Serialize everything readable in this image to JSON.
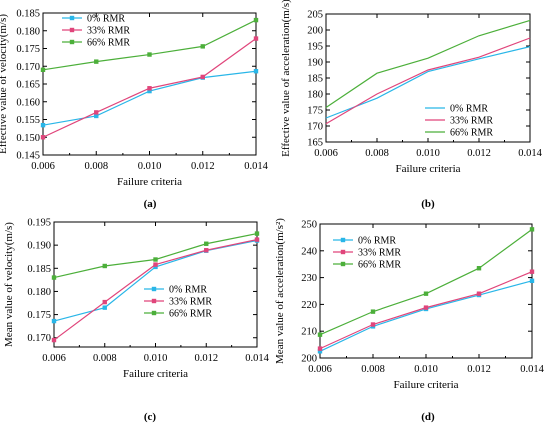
{
  "colors": {
    "s0": "#29b6e8",
    "s33": "#e0457b",
    "s66": "#4caf3a"
  },
  "chart_data": [
    {
      "type": "line",
      "panel_label": "(a)",
      "xlabel": "Failure criteria",
      "ylabel": "Effective value of velocity(m/s)",
      "x": [
        0.006,
        0.008,
        0.01,
        0.012,
        0.014
      ],
      "xticks": [
        "0.006",
        "0.008",
        "0.010",
        "0.012",
        "0.014"
      ],
      "xlim": [
        0.006,
        0.014
      ],
      "ylim": [
        0.145,
        0.185
      ],
      "yticks": [
        "0.145",
        "0.150",
        "0.155",
        "0.160",
        "0.165",
        "0.170",
        "0.175",
        "0.180",
        "0.185"
      ],
      "legend_position": "top-left",
      "series": [
        {
          "name": "0%   RMR",
          "values": [
            0.1534,
            0.156,
            0.163,
            0.1668,
            0.1686
          ]
        },
        {
          "name": "33% RMR",
          "values": [
            0.15,
            0.157,
            0.1638,
            0.167,
            0.1778
          ]
        },
        {
          "name": "66% RMR",
          "values": [
            0.169,
            0.1713,
            0.1733,
            0.1756,
            0.183
          ]
        }
      ]
    },
    {
      "type": "line",
      "panel_label": "(b)",
      "xlabel": "Failure criteria",
      "ylabel": "Effective value of acceleration(m/s)",
      "x": [
        0.006,
        0.008,
        0.01,
        0.012,
        0.014
      ],
      "xticks": [
        "0.006",
        "0.008",
        "0.010",
        "0.012",
        "0.014"
      ],
      "xlim": [
        0.006,
        0.014
      ],
      "ylim": [
        165,
        205
      ],
      "yticks": [
        "165",
        "170",
        "175",
        "180",
        "185",
        "190",
        "195",
        "200",
        "205"
      ],
      "legend_position": "bottom-right",
      "series": [
        {
          "name": "0%   RMR",
          "values": [
            172.5,
            178.7,
            187.0,
            191.0,
            194.8
          ]
        },
        {
          "name": "33% RMR",
          "values": [
            170.7,
            180.0,
            187.5,
            191.5,
            197.5
          ]
        },
        {
          "name": "66% RMR",
          "values": [
            175.8,
            186.5,
            191.2,
            198.2,
            203.0
          ]
        }
      ]
    },
    {
      "type": "line",
      "panel_label": "(c)",
      "xlabel": "Failure criteria",
      "ylabel": "Mean value of velocity(m/s)",
      "x": [
        0.006,
        0.008,
        0.01,
        0.012,
        0.014
      ],
      "xticks": [
        "0.006",
        "0.008",
        "0.010",
        "0.012",
        "0.014"
      ],
      "xlim": [
        0.006,
        0.014
      ],
      "ylim": [
        0.168,
        0.195
      ],
      "yticks": [
        "0.170",
        "0.175",
        "0.180",
        "0.185",
        "0.190",
        "0.195"
      ],
      "legend_position": "bottom-right",
      "series": [
        {
          "name": "0%   RMR",
          "values": [
            0.1736,
            0.1765,
            0.1853,
            0.1888,
            0.191
          ]
        },
        {
          "name": "33% RMR",
          "values": [
            0.1695,
            0.1777,
            0.1858,
            0.1889,
            0.1912
          ]
        },
        {
          "name": "66% RMR",
          "values": [
            0.183,
            0.1855,
            0.1869,
            0.1903,
            0.1925
          ]
        }
      ]
    },
    {
      "type": "line",
      "panel_label": "(d)",
      "xlabel": "Failure criteria",
      "ylabel": "Mean value of acceleration(m/s²)",
      "x": [
        0.006,
        0.008,
        0.01,
        0.012,
        0.014
      ],
      "xticks": [
        "0.006",
        "0.008",
        "0.010",
        "0.012",
        "0.014"
      ],
      "xlim": [
        0.006,
        0.014
      ],
      "ylim": [
        200,
        250
      ],
      "yticks": [
        "200",
        "210",
        "220",
        "230",
        "240",
        "250"
      ],
      "legend_position": "top-left",
      "series": [
        {
          "name": "0%   RMR",
          "values": [
            202.5,
            211.8,
            218.3,
            223.5,
            228.8
          ]
        },
        {
          "name": "33% RMR",
          "values": [
            203.5,
            212.5,
            218.8,
            224.0,
            232.2
          ]
        },
        {
          "name": "66% RMR",
          "values": [
            208.7,
            217.3,
            224.0,
            233.5,
            248.0
          ]
        }
      ]
    }
  ]
}
